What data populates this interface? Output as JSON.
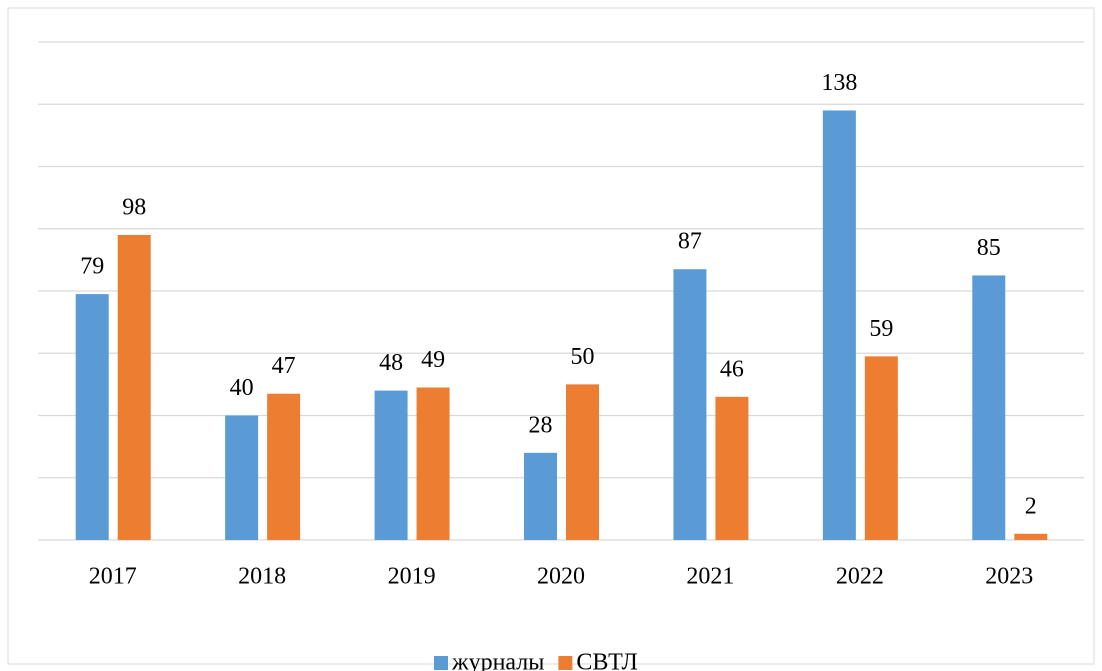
{
  "chart_data": {
    "type": "bar",
    "categories": [
      "2017",
      "2018",
      "2019",
      "2020",
      "2021",
      "2022",
      "2023"
    ],
    "series": [
      {
        "name": "журналы",
        "color": "#5b9bd5",
        "values": [
          79,
          40,
          48,
          28,
          87,
          138,
          85
        ]
      },
      {
        "name": "СВТЛ",
        "color": "#ed7d31",
        "values": [
          98,
          47,
          49,
          50,
          46,
          59,
          2
        ]
      }
    ],
    "ylim": [
      0,
      160
    ],
    "yticks": [
      0,
      20,
      40,
      60,
      80,
      100,
      120,
      140,
      160
    ],
    "grid": true,
    "legend": "bottom"
  }
}
